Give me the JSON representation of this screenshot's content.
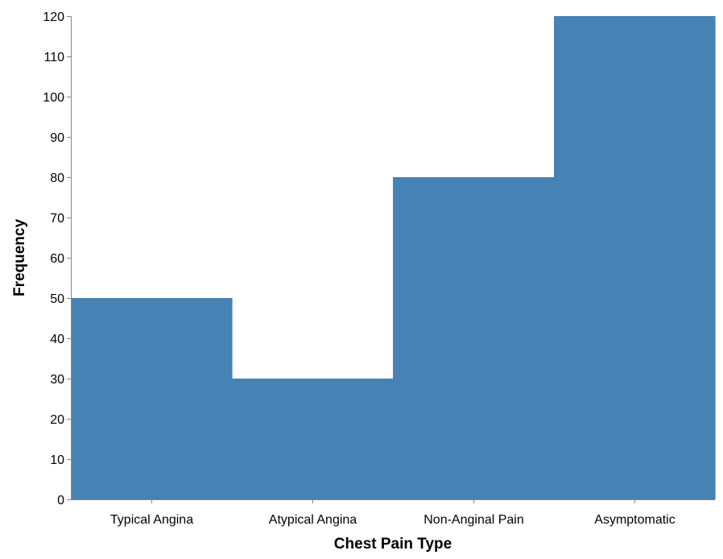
{
  "chart_data": {
    "type": "area",
    "interpolation": "step",
    "categories": [
      "Typical Angina",
      "Atypical Angina",
      "Non-Anginal Pain",
      "Asymptomatic"
    ],
    "values": [
      50,
      30,
      80,
      120
    ],
    "xlabel": "Chest Pain Type",
    "ylabel": "Frequency",
    "ylim": [
      0,
      120
    ],
    "yticks": [
      0,
      10,
      20,
      30,
      40,
      50,
      60,
      70,
      80,
      90,
      100,
      110,
      120
    ],
    "grid": false,
    "color": "#4682b4"
  }
}
